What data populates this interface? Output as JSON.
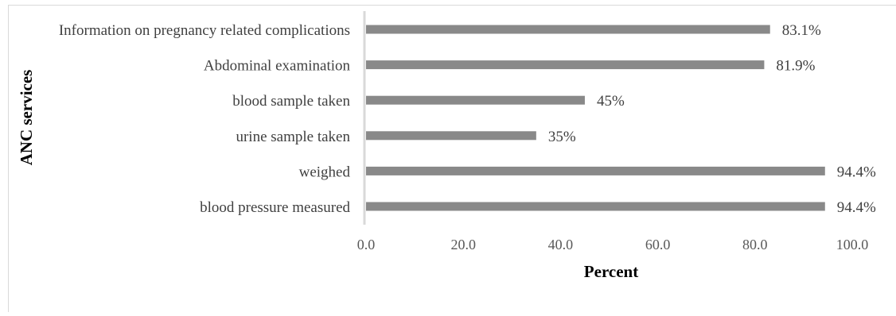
{
  "chart_data": {
    "type": "bar",
    "orientation": "horizontal",
    "categories": [
      "Information on pregnancy related complications",
      "Abdominal examination",
      "blood sample taken",
      "urine sample taken",
      "weighed",
      "blood pressure measured"
    ],
    "values": [
      83.1,
      81.9,
      45,
      35,
      94.4,
      94.4
    ],
    "data_labels": [
      "83.1%",
      "81.9%",
      "45%",
      "35%",
      "94.4%",
      "94.4%"
    ],
    "xlabel": "Percent",
    "ylabel": "ANC services",
    "xlim": [
      0,
      100
    ],
    "x_ticks": [
      "0.0",
      "20.0",
      "40.0",
      "60.0",
      "80.0",
      "100.0"
    ],
    "grid": false,
    "legend": "none",
    "bar_color": "#898989"
  }
}
